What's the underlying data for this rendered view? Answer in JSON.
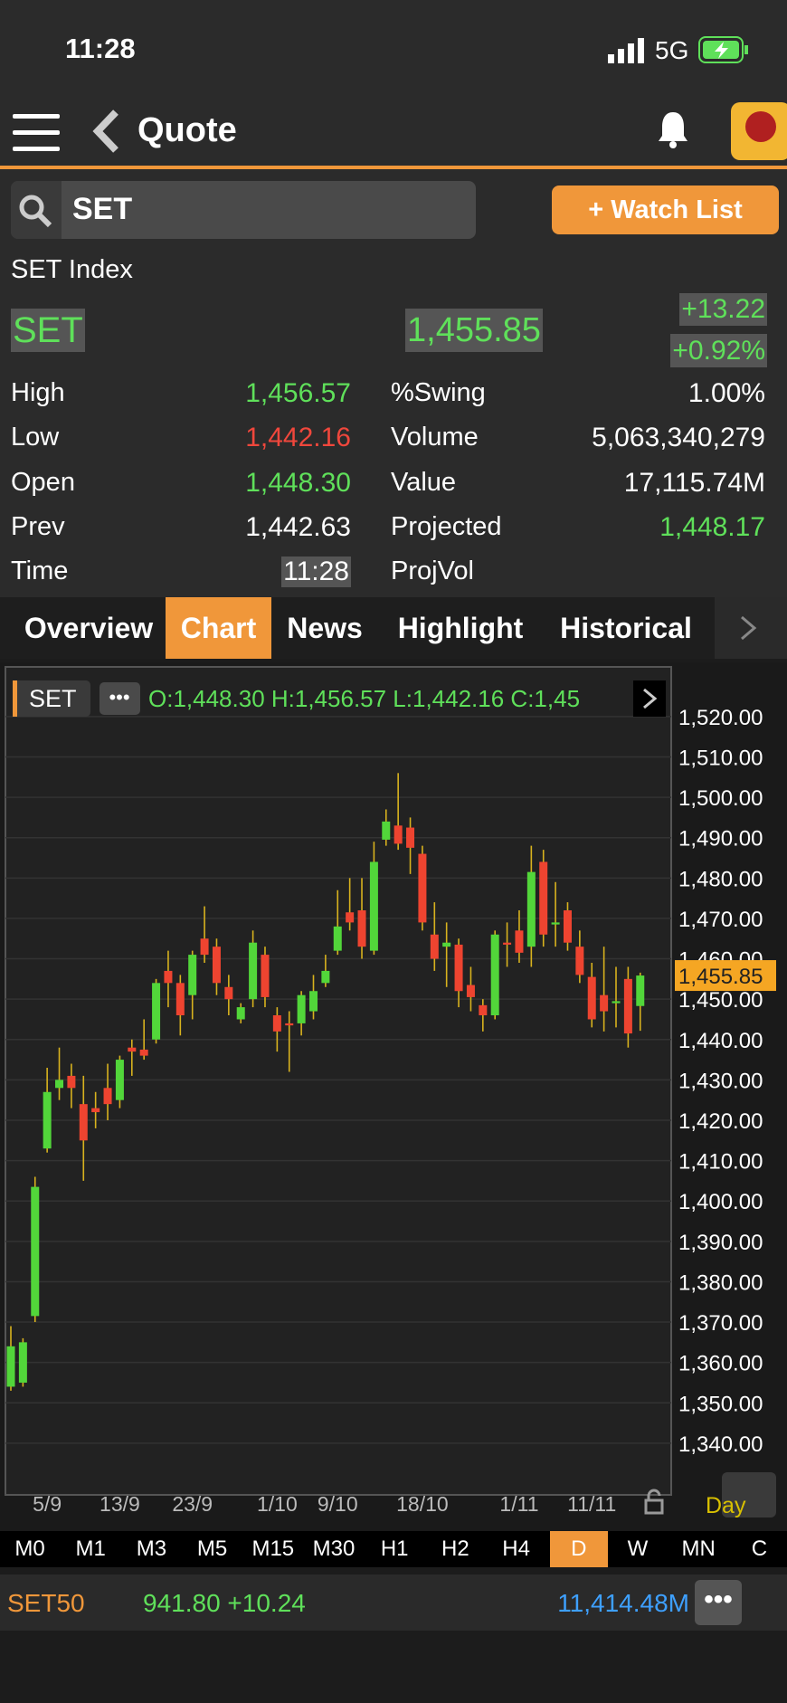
{
  "status_bar": {
    "time": "11:28",
    "network": "5G"
  },
  "header": {
    "title": "Quote"
  },
  "search": {
    "query": "SET",
    "button": "+ Watch List"
  },
  "quote": {
    "name": "SET Index",
    "symbol": "SET",
    "last": "1,455.85",
    "change": "+13.22",
    "change_pct": "+0.92%",
    "left": [
      {
        "label": "High",
        "value": "1,456.57",
        "color": "#5fe05a"
      },
      {
        "label": "Low",
        "value": "1,442.16",
        "color": "#f0473c"
      },
      {
        "label": "Open",
        "value": "1,448.30",
        "color": "#5fe05a"
      },
      {
        "label": "Prev",
        "value": "1,442.63",
        "color": "#ffffff"
      },
      {
        "label": "Time",
        "value": "11:28",
        "color": "#ffffff"
      }
    ],
    "right": [
      {
        "label": "%Swing",
        "value": "1.00%",
        "color": "#ffffff"
      },
      {
        "label": "Volume",
        "value": "5,063,340,279",
        "color": "#ffffff"
      },
      {
        "label": "Value",
        "value": "17,115.74M",
        "color": "#ffffff"
      },
      {
        "label": "Projected",
        "value": "1,448.17",
        "color": "#5fe05a"
      },
      {
        "label": "ProjVol"
      }
    ]
  },
  "tabs": [
    "Overview",
    "Chart",
    "News",
    "Highlight",
    "Historical"
  ],
  "chart_data": {
    "type": "candlestick",
    "symbol": "SET",
    "ohlc_text": "O:1,448.30  H:1,456.57  L:1,442.16  C:1,45",
    "categories": [
      null,
      null,
      null,
      "5/9",
      null,
      null,
      null,
      null,
      null,
      "13/9",
      null,
      null,
      null,
      null,
      null,
      "23/9",
      null,
      null,
      null,
      null,
      null,
      null,
      "1/10",
      null,
      null,
      null,
      null,
      "9/10",
      null,
      null,
      null,
      null,
      null,
      null,
      "18/10",
      null,
      null,
      null,
      null,
      null,
      null,
      null,
      "1/11",
      null,
      null,
      null,
      null,
      null,
      "11/11",
      null,
      null,
      null,
      null
    ],
    "open": [
      1354,
      1355,
      1371.5,
      1413,
      1428,
      1431,
      1424,
      1423,
      1428,
      1425,
      1438,
      1437.5,
      1440,
      1457,
      1454,
      1451,
      1465,
      1463,
      1453,
      1445,
      1450,
      1461,
      1446,
      1444,
      1444,
      1447,
      1454,
      1462,
      1471.5,
      1472,
      1462,
      1489.5,
      1493,
      1492.5,
      1486,
      1466,
      1463,
      1463.5,
      1453.5,
      1448.5,
      1446,
      1464,
      1467,
      1463,
      1484,
      1468.5,
      1472,
      1463,
      1455.5,
      1451,
      1449,
      1455,
      1448.3
    ],
    "close": [
      1364,
      1365,
      1403.5,
      1427,
      1430,
      1428,
      1415,
      1422,
      1424,
      1435,
      1437,
      1436,
      1454,
      1454,
      1446,
      1461,
      1461,
      1454,
      1450,
      1448,
      1464,
      1450.5,
      1442,
      1443.5,
      1451,
      1452,
      1457,
      1468,
      1469,
      1463,
      1484,
      1494,
      1488.5,
      1487.5,
      1469,
      1460,
      1464,
      1452,
      1450.5,
      1446,
      1466,
      1463.5,
      1461.5,
      1481.5,
      1466,
      1469,
      1464,
      1456,
      1445,
      1447,
      1449.5,
      1441.5,
      1455.85
    ],
    "high": [
      1369,
      1366,
      1406,
      1433,
      1438,
      1434,
      1431,
      1427,
      1434,
      1436,
      1440,
      1445,
      1455,
      1462,
      1456,
      1462,
      1473,
      1465,
      1456,
      1449,
      1467,
      1463,
      1448,
      1447,
      1452,
      1456,
      1461,
      1477,
      1480,
      1480,
      1489,
      1497,
      1506,
      1495,
      1488,
      1474,
      1469,
      1465,
      1458,
      1450,
      1467,
      1469,
      1472,
      1488,
      1487,
      1479,
      1474,
      1467,
      1459,
      1463,
      1458,
      1458,
      1456.57
    ],
    "low": [
      1353,
      1354,
      1370,
      1412,
      1425,
      1423,
      1405,
      1418,
      1420,
      1423,
      1431,
      1435,
      1439,
      1448,
      1441,
      1445,
      1459,
      1451,
      1446,
      1444,
      1448,
      1448,
      1437,
      1432,
      1441,
      1445,
      1453,
      1461,
      1467,
      1460,
      1461,
      1488,
      1487,
      1481,
      1467,
      1457,
      1453,
      1448,
      1447,
      1442,
      1445,
      1458,
      1459,
      1458,
      1463,
      1463,
      1462,
      1454,
      1443,
      1442,
      1443,
      1438,
      1442.16
    ],
    "up_color": "#52d63a",
    "down_color": "#ee4430",
    "wick_color": "#d8b21e",
    "ylim": [
      1327.2,
      1532.3
    ],
    "yticks": [
      {
        "value": 1520,
        "label": "1,520.00"
      },
      {
        "value": 1510,
        "label": "1,510.00"
      },
      {
        "value": 1500,
        "label": "1,500.00"
      },
      {
        "value": 1490,
        "label": "1,490.00"
      },
      {
        "value": 1480,
        "label": "1,480.00"
      },
      {
        "value": 1470,
        "label": "1,470.00"
      },
      {
        "value": 1460,
        "label": "1,460.00"
      },
      {
        "value": 1450,
        "label": "1,450.00"
      },
      {
        "value": 1440,
        "label": "1,440.00"
      },
      {
        "value": 1430,
        "label": "1,430.00"
      },
      {
        "value": 1420,
        "label": "1,420.00"
      },
      {
        "value": 1410,
        "label": "1,410.00"
      },
      {
        "value": 1400,
        "label": "1,400.00"
      },
      {
        "value": 1390,
        "label": "1,390.00"
      },
      {
        "value": 1380,
        "label": "1,380.00"
      },
      {
        "value": 1370,
        "label": "1,370.00"
      },
      {
        "value": 1360,
        "label": "1,360.00"
      },
      {
        "value": 1350,
        "label": "1,350.00"
      },
      {
        "value": 1340,
        "label": "1,340.00"
      }
    ],
    "grid": true,
    "last_price": {
      "value": 1455.85,
      "label": "1,455.85"
    },
    "period": "Day"
  },
  "timeframes": [
    "M0",
    "M1",
    "M3",
    "M5",
    "M15",
    "M30",
    "H1",
    "H2",
    "H4",
    "D",
    "W",
    "MN",
    "C"
  ],
  "active_timeframe": "D",
  "ticker": {
    "symbol": "SET50",
    "price": "941.80 +10.24",
    "value": "11,414.48M"
  }
}
